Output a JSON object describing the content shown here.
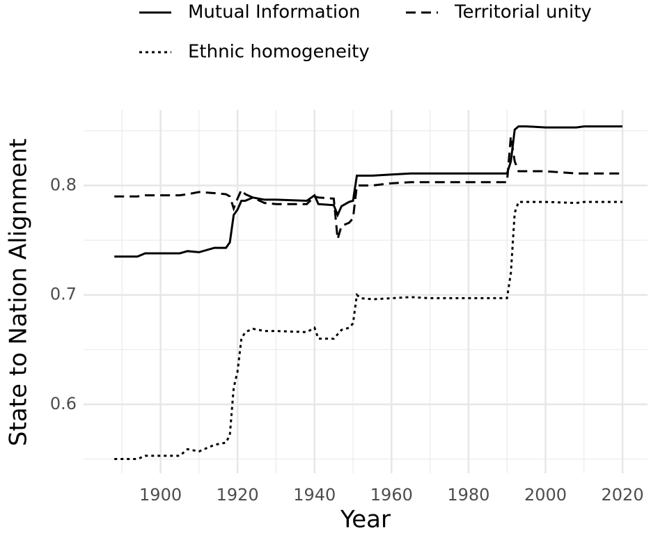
{
  "chart_data": {
    "type": "line",
    "xlabel": "Year",
    "ylabel": "State to Nation Alignment",
    "x": [
      1888,
      1894,
      1896,
      1905,
      1907,
      1910,
      1914,
      1917,
      1918,
      1919,
      1920,
      1921,
      1922,
      1924,
      1927,
      1930,
      1938,
      1940,
      1941,
      1945,
      1946,
      1947,
      1949,
      1950,
      1951,
      1952,
      1955,
      1960,
      1965,
      1970,
      1990,
      1991,
      1992,
      1993,
      1995,
      2000,
      2008,
      2010,
      2020
    ],
    "series": [
      {
        "name": "Mutual Information",
        "color": "#000000",
        "linestyle": "solid",
        "values": [
          0.735,
          0.735,
          0.738,
          0.738,
          0.74,
          0.739,
          0.743,
          0.743,
          0.748,
          0.773,
          0.778,
          0.786,
          0.786,
          0.789,
          0.787,
          0.787,
          0.786,
          0.791,
          0.783,
          0.782,
          0.773,
          0.781,
          0.785,
          0.786,
          0.809,
          0.809,
          0.809,
          0.81,
          0.811,
          0.811,
          0.811,
          0.822,
          0.851,
          0.854,
          0.854,
          0.853,
          0.853,
          0.854,
          0.854
        ]
      },
      {
        "name": "Territorial unity",
        "color": "#000000",
        "linestyle": "dashed",
        "values": [
          0.79,
          0.79,
          0.791,
          0.791,
          0.792,
          0.794,
          0.793,
          0.792,
          0.79,
          0.779,
          0.788,
          0.796,
          0.792,
          0.789,
          0.784,
          0.783,
          0.783,
          0.79,
          0.789,
          0.788,
          0.751,
          0.763,
          0.766,
          0.77,
          0.8,
          0.8,
          0.8,
          0.802,
          0.803,
          0.803,
          0.803,
          0.845,
          0.822,
          0.813,
          0.813,
          0.813,
          0.811,
          0.811,
          0.811
        ]
      },
      {
        "name": "Ethnic homogeneity",
        "color": "#000000",
        "linestyle": "dotted",
        "values": [
          0.55,
          0.55,
          0.553,
          0.553,
          0.559,
          0.557,
          0.563,
          0.565,
          0.572,
          0.615,
          0.63,
          0.66,
          0.666,
          0.669,
          0.667,
          0.667,
          0.666,
          0.67,
          0.66,
          0.66,
          0.664,
          0.668,
          0.67,
          0.674,
          0.7,
          0.697,
          0.696,
          0.697,
          0.698,
          0.697,
          0.697,
          0.72,
          0.775,
          0.785,
          0.785,
          0.785,
          0.784,
          0.785,
          0.785
        ]
      }
    ],
    "xlim": [
      1880,
      2026.5
    ],
    "xticks": [
      1900,
      1920,
      1940,
      1960,
      1980,
      2000,
      2020
    ],
    "xminor": [
      1890,
      1910,
      1930,
      1950,
      1970,
      1990,
      2010
    ],
    "ylim": [
      0.537,
      0.869
    ],
    "yticks": [
      {
        "value": 0.6,
        "label": "0.6"
      },
      {
        "value": 0.7,
        "label": "0.7"
      },
      {
        "value": 0.8,
        "label": "0.8"
      }
    ],
    "yminor": [
      0.55,
      0.65,
      0.75,
      0.85
    ],
    "grid": true,
    "legend": "top"
  }
}
